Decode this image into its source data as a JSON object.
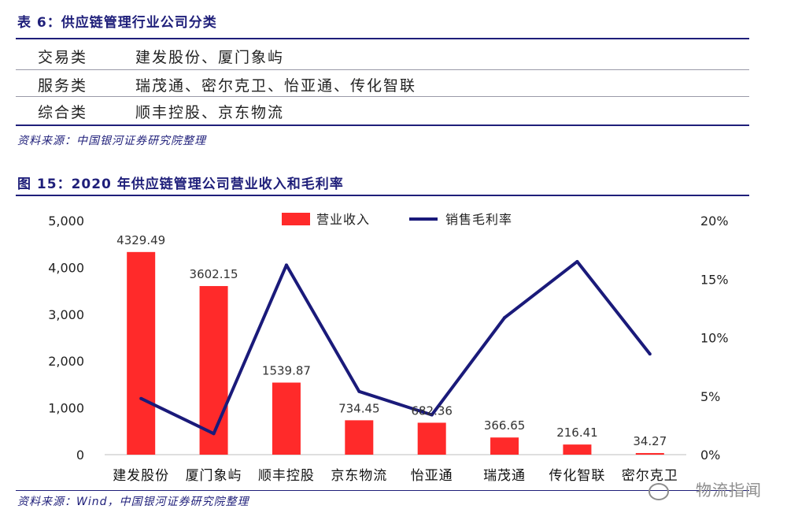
{
  "table": {
    "title": "表 6：供应链管理行业公司分类",
    "rows": [
      {
        "category": "交易类",
        "companies": "建发股份、厦门象屿"
      },
      {
        "category": "服务类",
        "companies": "瑞茂通、密尔克卫、怡亚通、传化智联"
      },
      {
        "category": "综合类",
        "companies": "顺丰控股、京东物流"
      }
    ],
    "source": "资料来源：中国银河证券研究院整理"
  },
  "figure": {
    "title": "图 15：2020 年供应链管理公司营业收入和毛利率",
    "source": "资料来源：Wind，中国银河证券研究院整理"
  },
  "watermark": "物流指闻",
  "chart_data": {
    "type": "bar",
    "categories": [
      "建发股份",
      "厦门象屿",
      "顺丰控股",
      "京东物流",
      "怡亚通",
      "瑞茂通",
      "传化智联",
      "密尔克卫"
    ],
    "series": [
      {
        "name": "营业收入",
        "type": "bar",
        "axis": "left",
        "color": "#ff2a2a",
        "values": [
          4329.49,
          3602.15,
          1539.87,
          734.45,
          682.36,
          366.65,
          216.41,
          34.27
        ],
        "labels": [
          "4329.49",
          "3602.15",
          "1539.87",
          "734.45",
          "682.36",
          "366.65",
          "216.41",
          "34.27"
        ]
      },
      {
        "name": "销售毛利率",
        "type": "line",
        "axis": "right",
        "color": "#1a1a7a",
        "values": [
          4.8,
          1.8,
          16.2,
          5.4,
          3.4,
          11.7,
          16.5,
          8.6
        ]
      }
    ],
    "y_left": {
      "min": 0,
      "max": 5000,
      "ticks": [
        "0",
        "1,000",
        "2,000",
        "3,000",
        "4,000",
        "5,000"
      ]
    },
    "y_right": {
      "min": 0,
      "max": 20,
      "ticks": [
        "0%",
        "5%",
        "10%",
        "15%",
        "20%"
      ]
    },
    "legend": "top-center",
    "grid": false
  }
}
